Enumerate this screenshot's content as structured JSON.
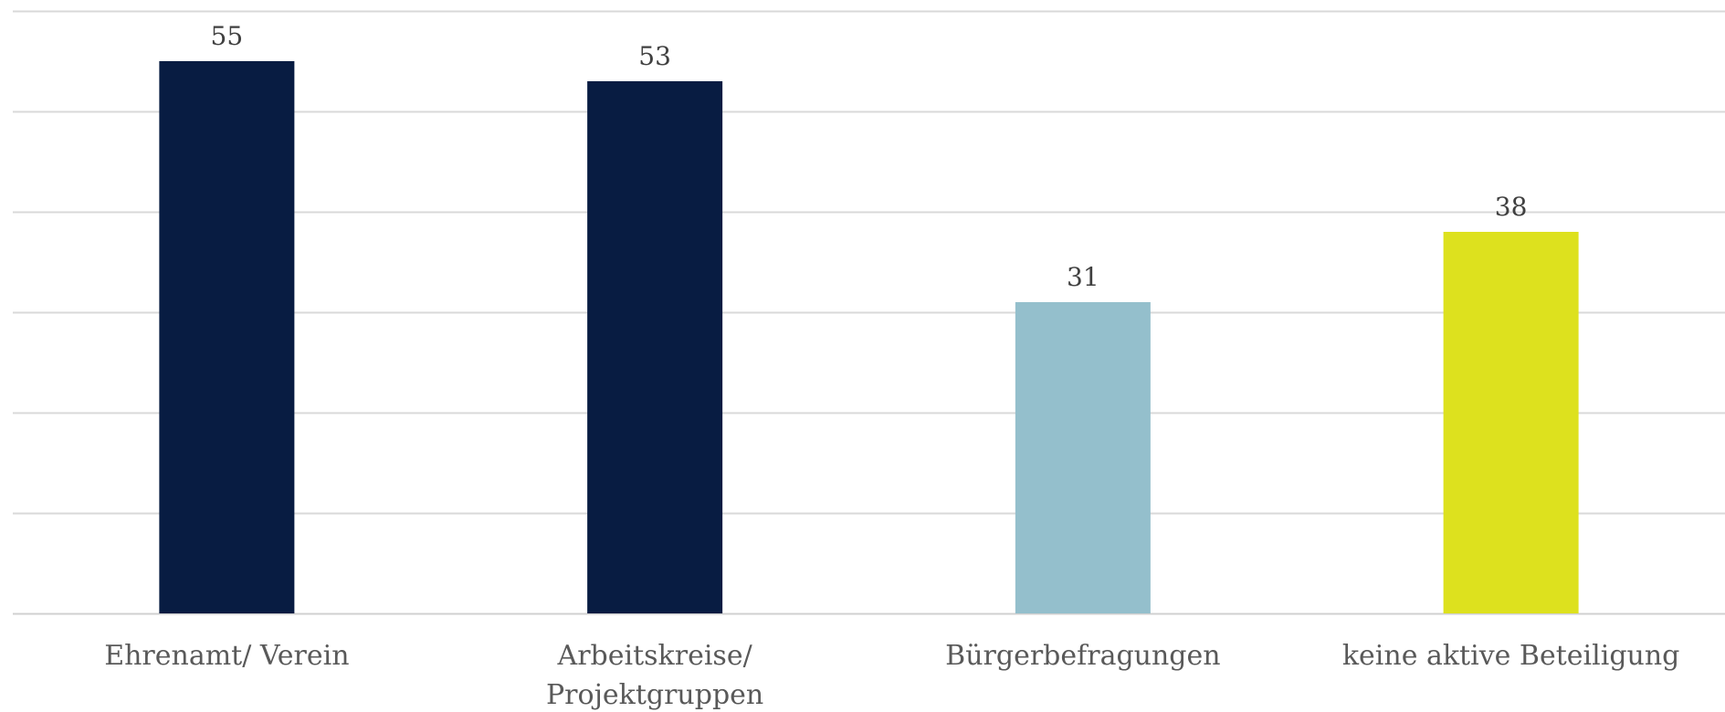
{
  "chart_data": {
    "type": "bar",
    "categories": [
      [
        "Ehrenamt/ Verein"
      ],
      [
        "Arbeitskreise/",
        "Projektgruppen"
      ],
      [
        "Bürgerbefragungen"
      ],
      [
        "keine aktive Beteiligung"
      ]
    ],
    "values": [
      55,
      53,
      31,
      38
    ],
    "bar_colors": [
      "#081c42",
      "#081c42",
      "#94bfcc",
      "#dde11e"
    ],
    "ylim": [
      0,
      60
    ],
    "ytick_step": 10,
    "grid": true,
    "title": "",
    "xlabel": "",
    "ylabel": ""
  },
  "colors": {
    "gridline": "#d9d9d9",
    "data_label": "#404040",
    "category_label": "#595959"
  }
}
